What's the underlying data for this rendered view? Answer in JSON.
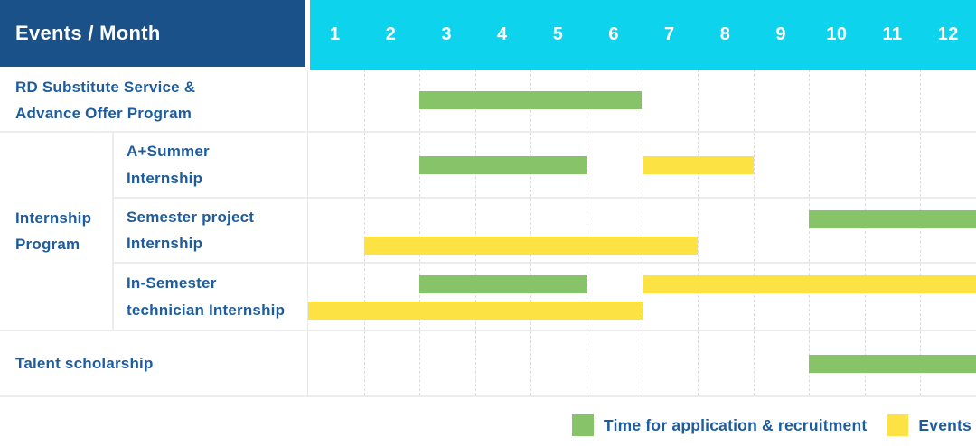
{
  "header": {
    "label": "Events / Month",
    "months": [
      "1",
      "2",
      "3",
      "4",
      "5",
      "6",
      "7",
      "8",
      "9",
      "10",
      "11",
      "12"
    ]
  },
  "group": {
    "name": "Internship Program",
    "name_lines": [
      "Internship",
      "Program"
    ]
  },
  "rows": [
    {
      "group": null,
      "label": "RD Substitute Service & Advance Offer Program",
      "label_lines": [
        "RD Substitute Service &",
        "Advance Offer Program"
      ],
      "bars": [
        {
          "key": "application",
          "start": 3,
          "end": 6,
          "track": 0
        }
      ]
    },
    {
      "group": "Internship Program",
      "label": "A+Summer Internship",
      "label_lines": [
        "A+Summer",
        "Internship"
      ],
      "bars": [
        {
          "key": "application",
          "start": 3,
          "end": 5,
          "track": 0
        },
        {
          "key": "events",
          "start": 7,
          "end": 8,
          "track": 0
        }
      ]
    },
    {
      "group": "Internship Program",
      "label": "Semester project Internship",
      "label_lines": [
        "Semester project",
        "Internship"
      ],
      "bars": [
        {
          "key": "application",
          "start": 10,
          "end": 12,
          "track": 0
        },
        {
          "key": "events",
          "start": 2,
          "end": 7,
          "track": 1
        }
      ]
    },
    {
      "group": "Internship Program",
      "label": "In-Semester technician Internship",
      "label_lines": [
        "In-Semester",
        "technician Internship"
      ],
      "bars": [
        {
          "key": "application",
          "start": 3,
          "end": 5,
          "track": 0
        },
        {
          "key": "events",
          "start": 7,
          "end": 12,
          "track": 0
        },
        {
          "key": "events",
          "start": 1,
          "end": 6,
          "track": 1
        }
      ]
    },
    {
      "group": null,
      "label": "Talent scholarship",
      "label_lines": [
        "Talent scholarship"
      ],
      "bars": [
        {
          "key": "application",
          "start": 10,
          "end": 12,
          "track": 0
        }
      ]
    }
  ],
  "legend": {
    "items": [
      {
        "key": "application",
        "label": "Time for application & recruitment",
        "color": "#87c368"
      },
      {
        "key": "events",
        "label": "Events",
        "color": "#fde243"
      }
    ]
  },
  "colors": {
    "header_bg": "#1a5188",
    "months_bg": "#0dd3ec",
    "application_green": "#87c368",
    "events_yellow": "#fde243",
    "label_text": "#1e5c9e"
  },
  "chart_data": {
    "type": "bar",
    "subtype": "gantt-timeline",
    "title": "Events / Month",
    "xlabel": "Month",
    "x_ticks": [
      1,
      2,
      3,
      4,
      5,
      6,
      7,
      8,
      9,
      10,
      11,
      12
    ],
    "xlim": [
      1,
      13
    ],
    "grid": true,
    "legend_position": "bottom-right",
    "legend": [
      "Time for application & recruitment",
      "Events"
    ],
    "legend_colors": {
      "Time for application & recruitment": "#87c368",
      "Events": "#fde243"
    },
    "rows": [
      {
        "category": "RD Substitute Service & Advance Offer Program",
        "group": null,
        "spans": [
          {
            "series": "Time for application & recruitment",
            "months": [
              3,
              6
            ]
          }
        ]
      },
      {
        "category": "A+Summer Internship",
        "group": "Internship Program",
        "spans": [
          {
            "series": "Time for application & recruitment",
            "months": [
              3,
              5
            ]
          },
          {
            "series": "Events",
            "months": [
              7,
              8
            ]
          }
        ]
      },
      {
        "category": "Semester project Internship",
        "group": "Internship Program",
        "spans": [
          {
            "series": "Time for application & recruitment",
            "months": [
              10,
              12
            ]
          },
          {
            "series": "Events",
            "months": [
              2,
              7
            ]
          }
        ]
      },
      {
        "category": "In-Semester technician Internship",
        "group": "Internship Program",
        "spans": [
          {
            "series": "Time for application & recruitment",
            "months": [
              3,
              5
            ]
          },
          {
            "series": "Events",
            "months": [
              7,
              12
            ]
          },
          {
            "series": "Events",
            "months": [
              1,
              6
            ]
          }
        ]
      },
      {
        "category": "Talent scholarship",
        "group": null,
        "spans": [
          {
            "series": "Time for application & recruitment",
            "months": [
              10,
              12
            ]
          }
        ]
      }
    ]
  }
}
